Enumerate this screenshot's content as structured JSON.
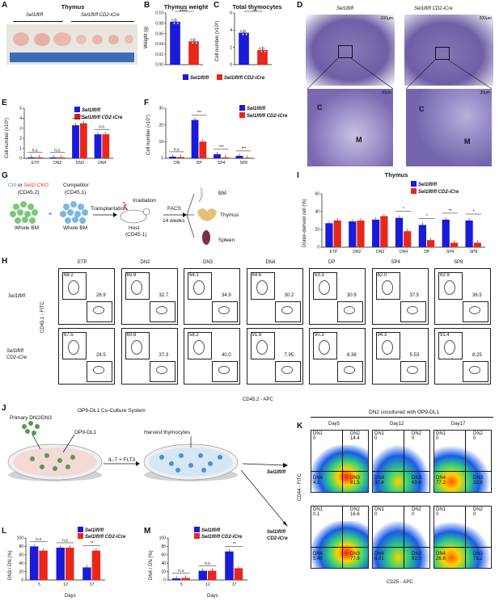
{
  "labels": {
    "A": "A",
    "B": "B",
    "C": "C",
    "D": "D",
    "E": "E",
    "F": "F",
    "G": "G",
    "H": "H",
    "I": "I",
    "J": "J",
    "K": "K",
    "L": "L",
    "M": "M"
  },
  "legend": {
    "ctrl": "Sel1lfl/fl",
    "cko": "Sel1lfl/fl CD2-iCre",
    "ctrl_color": "#1a1adb",
    "cko_color": "#e8271b"
  },
  "panelA": {
    "title": "Thymus",
    "group1": "Sel1lfl/fl",
    "group2": "Sel1lfl/fl CD2-iCre"
  },
  "panelB": {
    "title": "Thymus weight",
    "ylabel": "Weight (g)",
    "sig": "****"
  },
  "panelC": {
    "title": "Total thymocytes",
    "ylabel": "Cell number (x10⁸)",
    "sig": "**"
  },
  "panelD": {
    "left": "Sel1lfl/fl",
    "right": "Sel1lfl/fl CD2-iCre",
    "scale1": "200μm",
    "scale2": "30μm",
    "C": "C",
    "M": "M"
  },
  "panelE": {
    "ylabel": "Cell number (x10⁶)",
    "sig": [
      "n.s.",
      "n.s.",
      "n.s.",
      "n.s."
    ]
  },
  "panelF": {
    "ylabel": "Cell number (x10⁷)",
    "sig": [
      "n.s.",
      "***",
      "***",
      "***"
    ]
  },
  "panelG": {
    "ctrl": "Ctrl",
    "or": "or",
    "cko": "Sel1l CKO",
    "cd452": "(CD45.2)",
    "competitor": "Competitor",
    "cd451": "(CD45.1)",
    "plus": "+",
    "wholebm1": "Whole BM",
    "wholebm2": "Whole BM",
    "transplantation": "Transplantation",
    "irradiation": "Irradiation",
    "host": "Host",
    "host2": "(CD45.1)",
    "facs": "FACS",
    "weeks": "14 weeks",
    "bm": "BM",
    "thymus": "Thymus",
    "spleen": "Spleen"
  },
  "panelI": {
    "title": "Thymus",
    "ylabel": "Donor-derived cell (%)",
    "sig": [
      "*",
      "*",
      "**",
      "*"
    ]
  },
  "panelH": {
    "cols": [
      "ETP",
      "DN2",
      "DN3",
      "DN4",
      "DP",
      "SP4",
      "SP8"
    ],
    "row1": "Sel1lfl/fl",
    "row2a": "Sel1lfl/fl",
    "row2b": "CD2-iCre",
    "ylabel": "CD45.1 - FITC",
    "xlabel": "CD45.2 - APC",
    "top": [
      [
        "68.2",
        "26.9"
      ],
      [
        "65.9",
        "32.7"
      ],
      [
        "64.1",
        "34.9"
      ],
      [
        "64.6",
        "30.2"
      ],
      [
        "63.3",
        "30.9"
      ],
      [
        "62.0",
        "37.5"
      ],
      [
        "62.9",
        "36.5"
      ]
    ],
    "bottom": [
      [
        "67.5",
        "24.5"
      ],
      [
        "60.8",
        "37.3"
      ],
      [
        "58.2",
        "40.0"
      ],
      [
        "91.8",
        "7.95"
      ],
      [
        "90.3",
        "8.38"
      ],
      [
        "94.3",
        "5.53"
      ],
      [
        "91.4",
        "8.25"
      ]
    ]
  },
  "panelJ": {
    "title": "OP9-DL1 Co-Culture System",
    "primary": "Primary DN2/DN3",
    "op9": "OP9-DL1",
    "harvest": "Harvest thymocytes",
    "il7": "IL-7 + FLT3",
    "ctrl": "Sel1lfl/fl",
    "cko1": "Sel1lfl/fl",
    "cko2": "CD2-iCre"
  },
  "panelK": {
    "title": "DN2 cocultured with OP9-DL1",
    "days": [
      "Day5",
      "Day12",
      "Day17"
    ],
    "ylabel": "CD44 - FITC",
    "xlabel": "CD25 - APC",
    "top": [
      [
        "0",
        "14.4",
        "4.1",
        "81.5"
      ],
      [
        "0",
        "0",
        "30.4",
        "69.6"
      ],
      [
        "0",
        "0",
        "77.2",
        "22.8"
      ]
    ],
    "bottom": [
      [
        "0.1",
        "16.6",
        "5.45",
        "77.9"
      ],
      [
        "0",
        "0",
        "8.01",
        "92.0"
      ],
      [
        "0",
        "0",
        "26.8",
        "73.2"
      ]
    ]
  },
  "panelL": {
    "ylabel": "DN3 / DN (%)",
    "xlabel": "Days",
    "sig": [
      "n.s.",
      "n.s.",
      "**"
    ]
  },
  "panelM": {
    "ylabel": "DN4 / DN (%)",
    "xlabel": "Days",
    "sig": [
      "n.s.",
      "n.s.",
      "**"
    ]
  },
  "chart_data": [
    {
      "type": "bar",
      "name": "B",
      "categories": [
        "Sel1lfl/fl",
        "Sel1lfl/fl CD2-iCre"
      ],
      "values": [
        0.083,
        0.045
      ],
      "ylim": [
        0,
        0.1
      ],
      "yticks": [
        "0.00",
        "0.02",
        "0.04",
        "0.06",
        "0.08",
        "0.10"
      ]
    },
    {
      "type": "bar",
      "name": "C",
      "categories": [
        "Sel1lfl/fl",
        "Sel1lfl/fl CD2-iCre"
      ],
      "values": [
        3.7,
        1.7
      ],
      "ylim": [
        0,
        6
      ],
      "yticks": [
        "0",
        "2",
        "4",
        "6"
      ]
    },
    {
      "type": "bar",
      "name": "E",
      "categories": [
        "ETP",
        "DN2",
        "DN3",
        "DN4"
      ],
      "series": [
        {
          "values": [
            0.1,
            0.1,
            3.3,
            2.4
          ]
        },
        {
          "values": [
            0.1,
            0.1,
            3.5,
            2.4
          ]
        }
      ],
      "ylim": [
        0,
        5
      ],
      "yticks": [
        "0",
        "1",
        "2",
        "3",
        "4",
        "5"
      ]
    },
    {
      "type": "bar",
      "name": "F",
      "categories": [
        "DN",
        "DP",
        "SP4",
        "SP8"
      ],
      "series": [
        {
          "values": [
            1,
            23,
            2.5,
            1.5
          ]
        },
        {
          "values": [
            0.8,
            10,
            0.6,
            0.4
          ]
        }
      ],
      "ylim": [
        0,
        30
      ],
      "yticks": [
        "0",
        "10",
        "20",
        "30"
      ]
    },
    {
      "type": "bar",
      "name": "I",
      "categories": [
        "ETP",
        "DN2",
        "DN3",
        "DN4",
        "DP",
        "SP4",
        "SP8"
      ],
      "series": [
        {
          "values": [
            27,
            29,
            31,
            33,
            25,
            31,
            30
          ]
        },
        {
          "values": [
            30,
            30,
            35,
            18,
            8,
            5,
            5
          ]
        }
      ],
      "ylim": [
        0,
        60
      ],
      "yticks": [
        "0",
        "20",
        "40",
        "60"
      ]
    },
    {
      "type": "bar",
      "name": "L",
      "categories": [
        "5",
        "12",
        "17"
      ],
      "series": [
        {
          "values": [
            80,
            77,
            30
          ]
        },
        {
          "values": [
            70,
            77,
            70
          ]
        }
      ],
      "ylim": [
        0,
        100
      ],
      "yticks": [
        "0",
        "20",
        "40",
        "60",
        "80",
        "100"
      ]
    },
    {
      "type": "bar",
      "name": "M",
      "categories": [
        "5",
        "12",
        "17"
      ],
      "series": [
        {
          "values": [
            4,
            22,
            68
          ]
        },
        {
          "values": [
            5,
            22,
            28
          ]
        }
      ],
      "ylim": [
        0,
        100
      ],
      "yticks": [
        "0",
        "20",
        "40",
        "60",
        "80",
        "100"
      ]
    }
  ]
}
